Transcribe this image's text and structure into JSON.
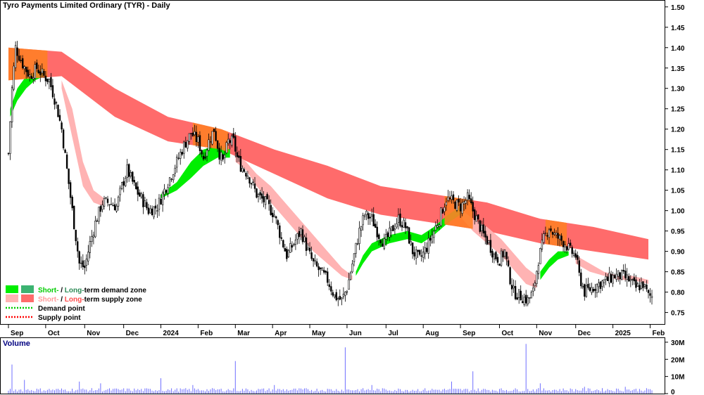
{
  "title": "Tyro Payments Limited Ordinary (TYR) - Daily",
  "volume_label": "Volume",
  "colors": {
    "short_demand": "#00ee00",
    "long_demand": "#3cb371",
    "short_supply": "#ffb3b3",
    "long_supply": "#ff6b6b",
    "overlap": "#ff7f27",
    "candle": "#000000",
    "volume": "#6f6fff",
    "demand_point": "#00cc00",
    "supply_point": "#ff0000"
  },
  "legend": [
    {
      "id": "zones_demand",
      "parts": [
        {
          "text": "Short-",
          "color": "#00cc00"
        },
        {
          "text": " / ",
          "color": "#000000"
        },
        {
          "text": "Long-",
          "color": "#2e8b57"
        },
        {
          "text": "term demand zone",
          "color": "#000000"
        }
      ],
      "swatches": [
        "#00ee00",
        "#3cb371"
      ]
    },
    {
      "id": "zones_supply",
      "parts": [
        {
          "text": "Short-",
          "color": "#ff9a9a"
        },
        {
          "text": " / ",
          "color": "#000000"
        },
        {
          "text": "Long-",
          "color": "#ff4d4d"
        },
        {
          "text": "term supply zone",
          "color": "#000000"
        }
      ],
      "swatches": [
        "#ffb3b3",
        "#ff6b6b"
      ]
    },
    {
      "id": "demand_point",
      "parts": [
        {
          "text": "Demand point",
          "color": "#000000"
        }
      ],
      "dotted": "#00cc00"
    },
    {
      "id": "supply_point",
      "parts": [
        {
          "text": "Supply point",
          "color": "#000000"
        }
      ],
      "dotted": "#ff0000"
    }
  ],
  "chart_data": {
    "type": "candlestick",
    "title": "Tyro Payments Limited Ordinary (TYR) - Daily",
    "x_labels": [
      "Sep",
      "Oct",
      "Nov",
      "Dec",
      "2024",
      "Feb",
      "Mar",
      "Apr",
      "May",
      "Jun",
      "Jul",
      "Aug",
      "Sep",
      "Oct",
      "Nov",
      "Dec",
      "2025",
      "Feb"
    ],
    "x_label_day": [
      0,
      21,
      43,
      65,
      86,
      107,
      128,
      149,
      170,
      191,
      213,
      234,
      255,
      277,
      298,
      320,
      341,
      362
    ],
    "y_ticks": [
      0.75,
      0.8,
      0.85,
      0.9,
      0.95,
      1.0,
      1.05,
      1.1,
      1.15,
      1.2,
      1.25,
      1.3,
      1.35,
      1.4,
      1.45,
      1.5
    ],
    "y_tick_labels": [
      "0.75",
      "0.80",
      "0.85",
      "0.90",
      "0.95",
      "1.00",
      "1.05",
      "1.10",
      "1.15",
      "1.20",
      "1.25",
      "1.30",
      "1.35",
      "1.40",
      "1.45",
      "1.50"
    ],
    "ylim": [
      0.72,
      1.51
    ],
    "days": 364,
    "close_path": [
      [
        0,
        1.14
      ],
      [
        2,
        1.3
      ],
      [
        4,
        1.4
      ],
      [
        8,
        1.36
      ],
      [
        12,
        1.33
      ],
      [
        16,
        1.35
      ],
      [
        20,
        1.33
      ],
      [
        23,
        1.32
      ],
      [
        27,
        1.26
      ],
      [
        30,
        1.2
      ],
      [
        33,
        1.1
      ],
      [
        36,
        1.0
      ],
      [
        40,
        0.87
      ],
      [
        43,
        0.86
      ],
      [
        46,
        0.92
      ],
      [
        49,
        0.97
      ],
      [
        53,
        1.02
      ],
      [
        57,
        1.02
      ],
      [
        61,
        1.01
      ],
      [
        64,
        1.06
      ],
      [
        67,
        1.1
      ],
      [
        70,
        1.07
      ],
      [
        72,
        1.05
      ],
      [
        75,
        1.03
      ],
      [
        79,
        1.0
      ],
      [
        84,
        1.01
      ],
      [
        89,
        1.06
      ],
      [
        94,
        1.11
      ],
      [
        99,
        1.16
      ],
      [
        103,
        1.19
      ],
      [
        107,
        1.17
      ],
      [
        110,
        1.13
      ],
      [
        113,
        1.17
      ],
      [
        116,
        1.2
      ],
      [
        119,
        1.14
      ],
      [
        121,
        1.12
      ],
      [
        124,
        1.17
      ],
      [
        127,
        1.17
      ],
      [
        129,
        1.13
      ],
      [
        131,
        1.11
      ],
      [
        135,
        1.09
      ],
      [
        140,
        1.04
      ],
      [
        145,
        1.02
      ],
      [
        150,
        0.99
      ],
      [
        154,
        0.93
      ],
      [
        157,
        0.89
      ],
      [
        161,
        0.92
      ],
      [
        165,
        0.95
      ],
      [
        169,
        0.9
      ],
      [
        172,
        0.87
      ],
      [
        176,
        0.85
      ],
      [
        180,
        0.83
      ],
      [
        184,
        0.79
      ],
      [
        188,
        0.78
      ],
      [
        191,
        0.81
      ],
      [
        194,
        0.87
      ],
      [
        198,
        0.95
      ],
      [
        201,
        0.99
      ],
      [
        205,
        0.98
      ],
      [
        209,
        0.94
      ],
      [
        212,
        0.92
      ],
      [
        216,
        0.95
      ],
      [
        220,
        0.98
      ],
      [
        224,
        0.96
      ],
      [
        228,
        0.9
      ],
      [
        232,
        0.88
      ],
      [
        236,
        0.91
      ],
      [
        240,
        0.95
      ],
      [
        243,
        0.98
      ],
      [
        247,
        1.03
      ],
      [
        251,
        1.02
      ],
      [
        255,
        1.01
      ],
      [
        259,
        1.03
      ],
      [
        262,
        1.0
      ],
      [
        265,
        0.97
      ],
      [
        268,
        0.94
      ],
      [
        271,
        0.92
      ],
      [
        274,
        0.89
      ],
      [
        277,
        0.88
      ],
      [
        280,
        0.9
      ],
      [
        282,
        0.85
      ],
      [
        285,
        0.8
      ],
      [
        289,
        0.79
      ],
      [
        293,
        0.78
      ],
      [
        296,
        0.8
      ],
      [
        299,
        0.88
      ],
      [
        302,
        0.93
      ],
      [
        305,
        0.96
      ],
      [
        308,
        0.94
      ],
      [
        311,
        0.93
      ],
      [
        314,
        0.92
      ],
      [
        317,
        0.9
      ],
      [
        320,
        0.89
      ],
      [
        322,
        0.84
      ],
      [
        325,
        0.8
      ],
      [
        329,
        0.81
      ],
      [
        333,
        0.82
      ],
      [
        338,
        0.83
      ],
      [
        342,
        0.84
      ],
      [
        346,
        0.84
      ],
      [
        350,
        0.83
      ],
      [
        354,
        0.81
      ],
      [
        358,
        0.82
      ],
      [
        361,
        0.79
      ]
    ],
    "long_supply_upper": [
      [
        0,
        1.4
      ],
      [
        30,
        1.39
      ],
      [
        60,
        1.3
      ],
      [
        90,
        1.23
      ],
      [
        120,
        1.2
      ],
      [
        150,
        1.15
      ],
      [
        180,
        1.11
      ],
      [
        210,
        1.06
      ],
      [
        240,
        1.04
      ],
      [
        270,
        1.02
      ],
      [
        300,
        0.98
      ],
      [
        330,
        0.96
      ],
      [
        361,
        0.93
      ]
    ],
    "long_supply_lower": [
      [
        0,
        1.32
      ],
      [
        30,
        1.33
      ],
      [
        60,
        1.23
      ],
      [
        90,
        1.17
      ],
      [
        120,
        1.15
      ],
      [
        150,
        1.09
      ],
      [
        180,
        1.03
      ],
      [
        210,
        0.99
      ],
      [
        240,
        0.97
      ],
      [
        270,
        0.95
      ],
      [
        300,
        0.92
      ],
      [
        330,
        0.9
      ],
      [
        361,
        0.88
      ]
    ],
    "short_supply_upper": [
      [
        30,
        1.32
      ],
      [
        36,
        1.25
      ],
      [
        42,
        1.12
      ],
      [
        48,
        1.05
      ],
      [
        54,
        1.03
      ],
      [
        128,
        1.14
      ],
      [
        134,
        1.12
      ],
      [
        140,
        1.09
      ],
      [
        148,
        1.06
      ],
      [
        156,
        1.02
      ],
      [
        164,
        0.98
      ],
      [
        172,
        0.94
      ],
      [
        180,
        0.9
      ],
      [
        188,
        0.86
      ],
      [
        194,
        0.84
      ],
      [
        256,
        1.0
      ],
      [
        262,
        0.98
      ],
      [
        270,
        0.96
      ],
      [
        278,
        0.93
      ],
      [
        286,
        0.89
      ],
      [
        292,
        0.86
      ],
      [
        298,
        0.84
      ],
      [
        320,
        0.89
      ],
      [
        328,
        0.87
      ],
      [
        336,
        0.85
      ],
      [
        344,
        0.84
      ],
      [
        352,
        0.84
      ],
      [
        361,
        0.83
      ]
    ],
    "short_supply_lower": [
      [
        30,
        1.3
      ],
      [
        36,
        1.18
      ],
      [
        42,
        1.06
      ],
      [
        48,
        1.02
      ],
      [
        54,
        1.01
      ],
      [
        128,
        1.12
      ],
      [
        134,
        1.1
      ],
      [
        140,
        1.06
      ],
      [
        148,
        1.02
      ],
      [
        156,
        0.98
      ],
      [
        164,
        0.94
      ],
      [
        172,
        0.9
      ],
      [
        180,
        0.87
      ],
      [
        188,
        0.84
      ],
      [
        194,
        0.83
      ],
      [
        256,
        0.98
      ],
      [
        262,
        0.95
      ],
      [
        270,
        0.92
      ],
      [
        278,
        0.89
      ],
      [
        286,
        0.85
      ],
      [
        292,
        0.82
      ],
      [
        298,
        0.81
      ],
      [
        320,
        0.87
      ],
      [
        328,
        0.85
      ],
      [
        336,
        0.84
      ],
      [
        344,
        0.83
      ],
      [
        352,
        0.83
      ],
      [
        361,
        0.82
      ]
    ],
    "short_demand_upper": [
      [
        1,
        1.25
      ],
      [
        5,
        1.3
      ],
      [
        10,
        1.33
      ],
      [
        15,
        1.34
      ],
      [
        20,
        1.35
      ],
      [
        86,
        1.04
      ],
      [
        95,
        1.07
      ],
      [
        103,
        1.12
      ],
      [
        110,
        1.15
      ],
      [
        118,
        1.16
      ],
      [
        125,
        1.15
      ],
      [
        196,
        0.85
      ],
      [
        200,
        0.89
      ],
      [
        205,
        0.92
      ],
      [
        215,
        0.94
      ],
      [
        225,
        0.95
      ],
      [
        233,
        0.94
      ],
      [
        240,
        0.96
      ],
      [
        248,
        0.99
      ],
      [
        255,
        1.01
      ],
      [
        300,
        0.85
      ],
      [
        305,
        0.88
      ],
      [
        310,
        0.9
      ],
      [
        316,
        0.9
      ]
    ],
    "short_demand_lower": [
      [
        1,
        1.23
      ],
      [
        5,
        1.27
      ],
      [
        10,
        1.3
      ],
      [
        15,
        1.32
      ],
      [
        20,
        1.33
      ],
      [
        86,
        1.03
      ],
      [
        95,
        1.05
      ],
      [
        103,
        1.08
      ],
      [
        110,
        1.11
      ],
      [
        118,
        1.13
      ],
      [
        125,
        1.13
      ],
      [
        196,
        0.84
      ],
      [
        200,
        0.87
      ],
      [
        205,
        0.9
      ],
      [
        215,
        0.92
      ],
      [
        225,
        0.93
      ],
      [
        233,
        0.92
      ],
      [
        240,
        0.94
      ],
      [
        248,
        0.97
      ],
      [
        255,
        0.99
      ],
      [
        300,
        0.83
      ],
      [
        305,
        0.86
      ],
      [
        310,
        0.88
      ],
      [
        316,
        0.89
      ]
    ],
    "volume_yticks": [
      0,
      10,
      20,
      30
    ],
    "volume_ytick_labels": [
      "0",
      "10M",
      "20M",
      "30M"
    ],
    "volume_ylim": [
      0,
      32
    ],
    "volume_spikes": [
      [
        2,
        17
      ],
      [
        9,
        8
      ],
      [
        40,
        7
      ],
      [
        52,
        6
      ],
      [
        86,
        9
      ],
      [
        104,
        5
      ],
      [
        128,
        19
      ],
      [
        150,
        5
      ],
      [
        190,
        27
      ],
      [
        205,
        5
      ],
      [
        250,
        7
      ],
      [
        262,
        13
      ],
      [
        292,
        29
      ],
      [
        300,
        6
      ],
      [
        325,
        4
      ],
      [
        348,
        4
      ]
    ]
  }
}
